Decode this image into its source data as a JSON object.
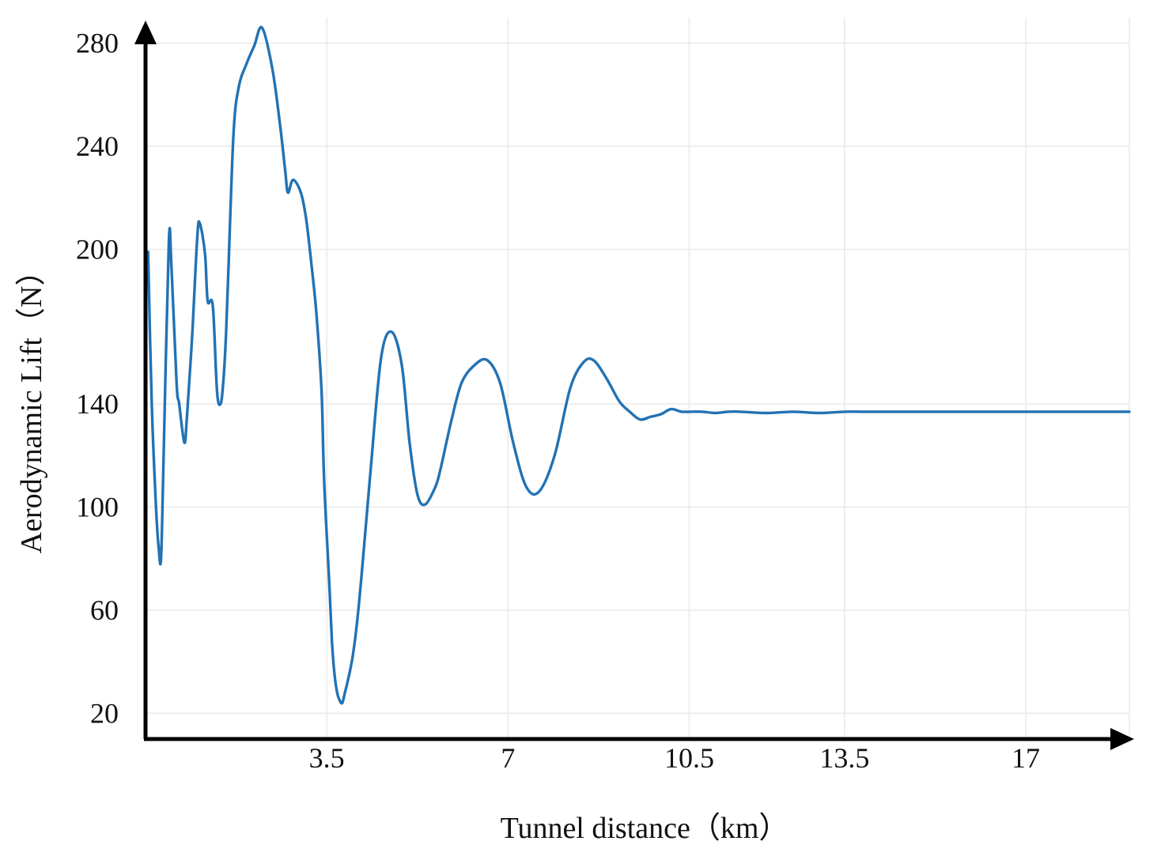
{
  "chart_data": {
    "type": "line",
    "title": "",
    "xlabel": "Tunnel distance（km）",
    "ylabel": "Aerodynamic Lift（N）",
    "xlim": [
      0,
      19
    ],
    "ylim": [
      10,
      290
    ],
    "x_ticks": [
      3.5,
      7,
      10.5,
      13.5,
      17
    ],
    "x_tick_labels": [
      "3.5",
      "7",
      "10.5",
      "13.5",
      "17"
    ],
    "y_ticks": [
      20,
      60,
      100,
      140,
      200,
      240,
      280
    ],
    "y_tick_labels": [
      "20",
      "60",
      "100",
      "140",
      "200",
      "240",
      "280"
    ],
    "grid": true,
    "legend": "none",
    "colors": {
      "series": "#2272b4",
      "axis": "#000000",
      "grid": "#e9e9e9"
    },
    "series": [
      {
        "x": [
          0.05,
          0.12,
          0.2,
          0.25,
          0.3,
          0.35,
          0.45,
          0.5,
          0.6,
          0.65,
          0.75,
          0.8,
          0.9,
          1.0,
          1.05,
          1.15,
          1.2,
          1.3,
          1.38,
          1.45,
          1.5,
          1.55,
          1.6,
          1.7,
          1.8,
          1.95,
          2.1,
          2.25,
          2.45,
          2.6,
          2.7,
          2.75,
          2.85,
          3.0,
          3.1,
          3.2,
          3.3,
          3.4,
          3.45,
          3.55,
          3.6,
          3.65,
          3.7,
          3.75,
          3.8,
          3.85,
          3.9,
          4.0,
          4.1,
          4.2,
          4.35,
          4.55,
          4.75,
          4.95,
          5.1,
          5.25,
          5.4,
          5.6,
          5.7,
          5.9,
          6.1,
          6.35,
          6.6,
          6.85,
          7.1,
          7.35,
          7.6,
          7.9,
          8.2,
          8.45,
          8.65,
          8.9,
          9.15,
          9.35,
          9.55,
          9.75,
          9.95,
          10.15,
          10.35,
          10.55,
          10.75,
          11.0,
          11.25,
          11.5,
          12.0,
          12.5,
          13.0,
          13.5,
          13.8,
          14.0,
          14.5,
          15.0,
          15.5,
          16.0,
          16.5,
          17.0,
          17.5,
          18.0,
          18.5,
          19.0
        ],
        "y": [
          199,
          140,
          101,
          85,
          80,
          120,
          203,
          194,
          148,
          140,
          125,
          135,
          166,
          205,
          210,
          198,
          180,
          178,
          145,
          140,
          148,
          165,
          192,
          245,
          263,
          272,
          279,
          286,
          270,
          248,
          230,
          222,
          227,
          222,
          212,
          195,
          175,
          145,
          110,
          70,
          48,
          35,
          28,
          25,
          24,
          28,
          32,
          42,
          58,
          80,
          115,
          158,
          168,
          155,
          125,
          105,
          101,
          108,
          115,
          133,
          148,
          155,
          157,
          148,
          125,
          108,
          106,
          120,
          146,
          156,
          157,
          150,
          141,
          137,
          134,
          135,
          136,
          138,
          137,
          137,
          137,
          136.5,
          137,
          137,
          136.5,
          137,
          136.5,
          137,
          137,
          137,
          137,
          137,
          137,
          137,
          137,
          137,
          137,
          137,
          137,
          137
        ]
      }
    ]
  }
}
